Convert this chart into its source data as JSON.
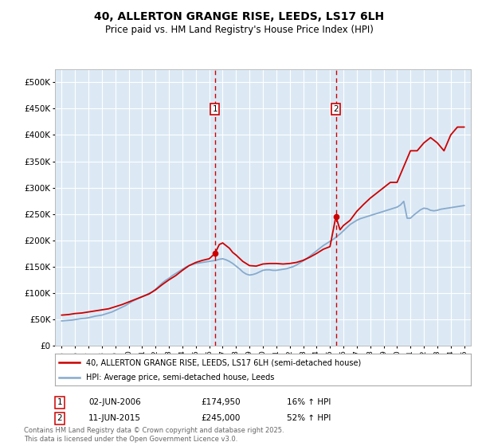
{
  "title": "40, ALLERTON GRANGE RISE, LEEDS, LS17 6LH",
  "subtitle": "Price paid vs. HM Land Registry's House Price Index (HPI)",
  "legend_line1": "40, ALLERTON GRANGE RISE, LEEDS, LS17 6LH (semi-detached house)",
  "legend_line2": "HPI: Average price, semi-detached house, Leeds",
  "footer": "Contains HM Land Registry data © Crown copyright and database right 2025.\nThis data is licensed under the Open Government Licence v3.0.",
  "purchase1_date": "02-JUN-2006",
  "purchase1_x": 2006.42,
  "purchase1_price": 174950,
  "purchase2_date": "11-JUN-2015",
  "purchase2_x": 2015.44,
  "purchase2_price": 245000,
  "purchase1_hpi_pct": "16% ↑ HPI",
  "purchase2_hpi_pct": "52% ↑ HPI",
  "xlim": [
    1994.5,
    2025.5
  ],
  "ylim": [
    0,
    525000
  ],
  "yticks": [
    0,
    50000,
    100000,
    150000,
    200000,
    250000,
    300000,
    350000,
    400000,
    450000,
    500000
  ],
  "ytick_labels": [
    "£0",
    "£50K",
    "£100K",
    "£150K",
    "£200K",
    "£250K",
    "£300K",
    "£350K",
    "£400K",
    "£450K",
    "£500K"
  ],
  "background_color": "#dce9f5",
  "red_line_color": "#cc0000",
  "blue_line_color": "#88aacc",
  "grid_color": "#ffffff",
  "hpi_x": [
    1995.0,
    1995.25,
    1995.5,
    1995.75,
    1996.0,
    1996.25,
    1996.5,
    1996.75,
    1997.0,
    1997.25,
    1997.5,
    1997.75,
    1998.0,
    1998.25,
    1998.5,
    1998.75,
    1999.0,
    1999.25,
    1999.5,
    1999.75,
    2000.0,
    2000.25,
    2000.5,
    2000.75,
    2001.0,
    2001.25,
    2001.5,
    2001.75,
    2002.0,
    2002.25,
    2002.5,
    2002.75,
    2003.0,
    2003.25,
    2003.5,
    2003.75,
    2004.0,
    2004.25,
    2004.5,
    2004.75,
    2005.0,
    2005.25,
    2005.5,
    2005.75,
    2006.0,
    2006.25,
    2006.5,
    2006.75,
    2007.0,
    2007.25,
    2007.5,
    2007.75,
    2008.0,
    2008.25,
    2008.5,
    2008.75,
    2009.0,
    2009.25,
    2009.5,
    2009.75,
    2010.0,
    2010.25,
    2010.5,
    2010.75,
    2011.0,
    2011.25,
    2011.5,
    2011.75,
    2012.0,
    2012.25,
    2012.5,
    2012.75,
    2013.0,
    2013.25,
    2013.5,
    2013.75,
    2014.0,
    2014.25,
    2014.5,
    2014.75,
    2015.0,
    2015.25,
    2015.5,
    2015.75,
    2016.0,
    2016.25,
    2016.5,
    2016.75,
    2017.0,
    2017.25,
    2017.5,
    2017.75,
    2018.0,
    2018.25,
    2018.5,
    2018.75,
    2019.0,
    2019.25,
    2019.5,
    2019.75,
    2020.0,
    2020.25,
    2020.5,
    2020.75,
    2021.0,
    2021.25,
    2021.5,
    2021.75,
    2022.0,
    2022.25,
    2022.5,
    2022.75,
    2023.0,
    2023.25,
    2023.5,
    2023.75,
    2024.0,
    2024.25,
    2024.5,
    2024.75,
    2025.0
  ],
  "hpi_y": [
    47000,
    47500,
    48000,
    48500,
    49500,
    50500,
    51500,
    52000,
    53000,
    54500,
    56000,
    57000,
    58000,
    60000,
    62000,
    64000,
    67000,
    70000,
    73000,
    76000,
    80000,
    84000,
    87000,
    90000,
    93000,
    96000,
    99000,
    102000,
    107000,
    113000,
    119000,
    124000,
    128000,
    133000,
    137000,
    141000,
    145000,
    149000,
    152000,
    154000,
    156000,
    157000,
    158000,
    159000,
    160000,
    161000,
    162000,
    164000,
    165000,
    163000,
    160000,
    156000,
    151000,
    146000,
    140000,
    136000,
    134000,
    135000,
    137000,
    140000,
    143000,
    144000,
    144000,
    143000,
    143000,
    144000,
    145000,
    146000,
    148000,
    150000,
    153000,
    157000,
    161000,
    165000,
    170000,
    175000,
    180000,
    185000,
    190000,
    194000,
    198000,
    202000,
    207000,
    212000,
    218000,
    224000,
    230000,
    234000,
    238000,
    241000,
    243000,
    245000,
    247000,
    249000,
    251000,
    253000,
    255000,
    257000,
    259000,
    261000,
    263000,
    267000,
    274000,
    242000,
    242000,
    248000,
    253000,
    258000,
    261000,
    260000,
    257000,
    256000,
    257000,
    259000,
    260000,
    261000,
    262000,
    263000,
    264000,
    265000,
    266000
  ],
  "red_x": [
    1995.0,
    1995.5,
    1996.0,
    1996.5,
    1997.0,
    1997.5,
    1998.0,
    1998.5,
    1999.0,
    1999.5,
    2000.0,
    2000.5,
    2001.0,
    2001.5,
    2002.0,
    2002.5,
    2003.0,
    2003.5,
    2004.0,
    2004.5,
    2005.0,
    2005.5,
    2006.0,
    2006.42,
    2006.75,
    2007.0,
    2007.25,
    2007.5,
    2007.75,
    2008.0,
    2008.5,
    2009.0,
    2009.5,
    2010.0,
    2010.5,
    2011.0,
    2011.5,
    2012.0,
    2012.5,
    2013.0,
    2013.5,
    2014.0,
    2014.5,
    2015.0,
    2015.44,
    2015.75,
    2016.0,
    2016.5,
    2017.0,
    2017.5,
    2018.0,
    2018.5,
    2019.0,
    2019.5,
    2020.0,
    2020.5,
    2021.0,
    2021.5,
    2022.0,
    2022.5,
    2023.0,
    2023.5,
    2024.0,
    2024.5,
    2025.0
  ],
  "red_y": [
    58000,
    59000,
    61000,
    62000,
    64000,
    66000,
    68000,
    70000,
    74000,
    78000,
    83000,
    88000,
    93000,
    98000,
    106000,
    116000,
    125000,
    133000,
    143000,
    152000,
    158000,
    162000,
    165000,
    174950,
    192000,
    195000,
    190000,
    185000,
    177000,
    172000,
    160000,
    152000,
    151000,
    155000,
    156000,
    156000,
    155000,
    156000,
    158000,
    162000,
    168000,
    175000,
    183000,
    188000,
    245000,
    220000,
    228000,
    238000,
    255000,
    268000,
    280000,
    290000,
    300000,
    310000,
    310000,
    340000,
    370000,
    370000,
    385000,
    395000,
    385000,
    370000,
    400000,
    415000,
    415000
  ]
}
